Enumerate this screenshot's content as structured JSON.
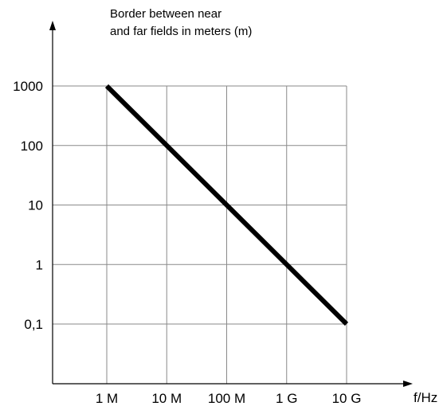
{
  "chart_data": {
    "type": "line",
    "title_lines": [
      "Border between near",
      "and far fields in meters (m)"
    ],
    "xlabel": "f/Hz",
    "ylabel": "",
    "x_scale": "log",
    "y_scale": "log",
    "x_ticks": [
      {
        "value": 1000000,
        "label": "1 M"
      },
      {
        "value": 10000000,
        "label": "10 M"
      },
      {
        "value": 100000000,
        "label": "100 M"
      },
      {
        "value": 1000000000,
        "label": "1 G"
      },
      {
        "value": 10000000000,
        "label": "10 G"
      }
    ],
    "y_ticks": [
      {
        "value": 1000,
        "label": "1000"
      },
      {
        "value": 100,
        "label": "100"
      },
      {
        "value": 10,
        "label": "10"
      },
      {
        "value": 1,
        "label": "1"
      },
      {
        "value": 0.1,
        "label": "0,1"
      }
    ],
    "grid": true,
    "series": [
      {
        "x": [
          1000000,
          10000000,
          100000000,
          1000000000,
          10000000000
        ],
        "y": [
          1000,
          100,
          10,
          1,
          0.1
        ]
      }
    ]
  }
}
